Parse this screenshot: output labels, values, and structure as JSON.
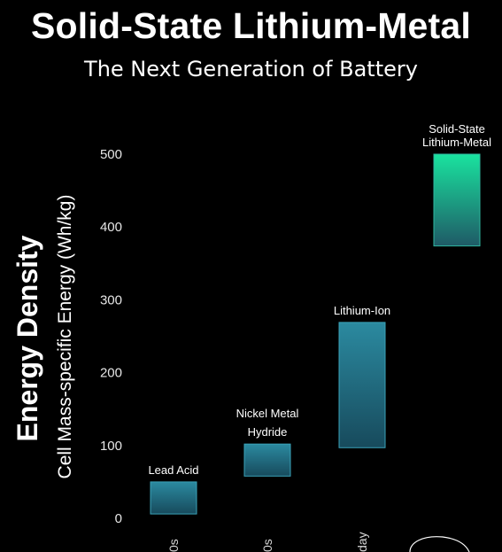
{
  "header": {
    "title": "Solid-State Lithium-Metal",
    "subtitle": "The Next Generation of Battery"
  },
  "chart_data": {
    "type": "bar",
    "title": "Solid-State Lithium-Metal",
    "subtitle": "The Next Generation of Battery",
    "ylabel_main": "Energy Density",
    "ylabel": "Cell Mass-specific Energy (Wh/kg)",
    "ylim": [
      0,
      540
    ],
    "yticks": [
      0,
      100,
      200,
      300,
      400,
      500
    ],
    "grid": false,
    "bar_style": "floating-range",
    "categories": [
      {
        "name": "Lead Acid",
        "low": 6,
        "high": 50,
        "xtick": "0s",
        "color": "#2b7f95"
      },
      {
        "name": "Nickel Metal Hydride",
        "low": 58,
        "high": 102,
        "xtick": "0s",
        "color": "#2b7f95"
      },
      {
        "name": "Lithium-Ion",
        "low": 97,
        "high": 269,
        "xtick": "day",
        "color": "#2b7f95"
      },
      {
        "name": "Solid-State Lithium-Metal",
        "low": 374,
        "high": 500,
        "xtick": "",
        "color": "#19d9a0"
      }
    ],
    "colors": {
      "background": "#000000",
      "bar_top": "#2b8aa0",
      "bar_bottom": "#174a5c",
      "highlight_top": "#19e39f",
      "highlight_bottom": "#1f5a66"
    }
  }
}
